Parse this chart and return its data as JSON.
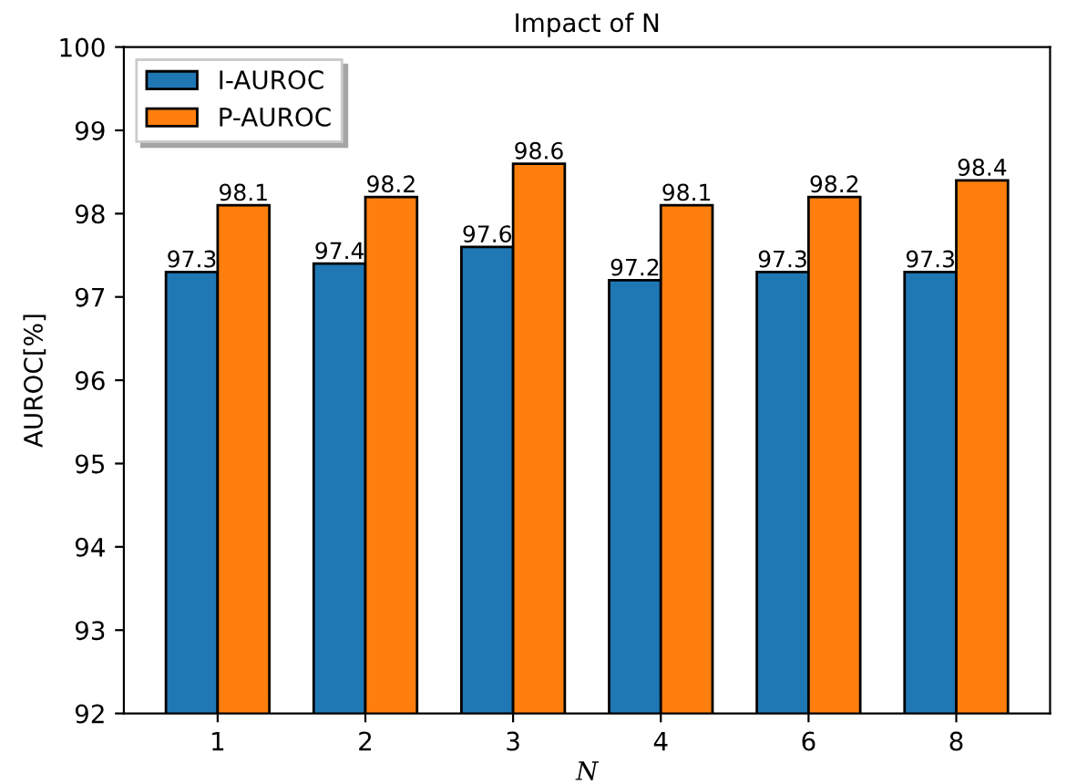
{
  "chart_data": {
    "type": "bar",
    "title": "Impact of N",
    "xlabel": "N",
    "ylabel": "AUROC[%]",
    "categories": [
      "1",
      "2",
      "3",
      "4",
      "6",
      "8"
    ],
    "series": [
      {
        "name": "I-AUROC",
        "color": "#1f77b4",
        "values": [
          97.3,
          97.4,
          97.6,
          97.2,
          97.3,
          97.3
        ]
      },
      {
        "name": "P-AUROC",
        "color": "#ff7f0e",
        "values": [
          98.1,
          98.2,
          98.6,
          98.1,
          98.2,
          98.4
        ]
      }
    ],
    "ylim": [
      92,
      100
    ],
    "yticks": [
      92,
      93,
      94,
      95,
      96,
      97,
      98,
      99,
      100
    ],
    "grid": false,
    "legend": "top left",
    "data_labels": true
  }
}
